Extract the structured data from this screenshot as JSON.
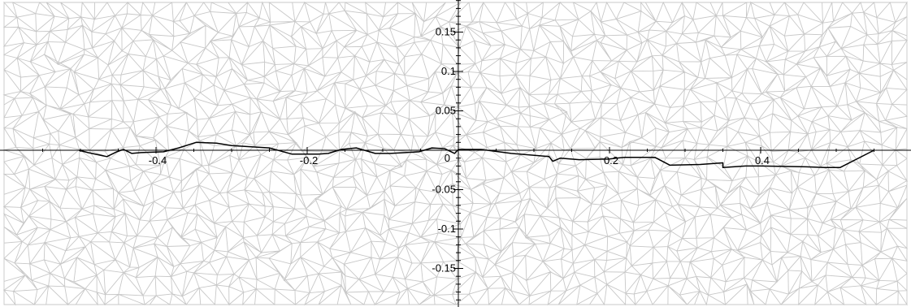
{
  "chart_data": {
    "type": "line",
    "title": "",
    "xlabel": "",
    "ylabel": "",
    "xlim": [
      -0.6,
      0.6
    ],
    "ylim": [
      -0.195,
      0.195
    ],
    "grid": false,
    "background": "triangular mesh",
    "x_ticks": [
      -0.4,
      -0.2,
      0.2,
      0.4
    ],
    "x_tick_labels": [
      "-0.4",
      "-0.2",
      "0.2",
      "0.4"
    ],
    "y_ticks": [
      0.15,
      0.1,
      0.05,
      -0.05,
      -0.1,
      -0.15
    ],
    "y_tick_labels": [
      "0.15",
      "0.1",
      "0.05",
      "-0.05",
      "-0.1",
      "-0.15"
    ],
    "origin_label": "0",
    "series": [
      {
        "color": "#000000",
        "x": [
          -0.502,
          -0.49,
          -0.465,
          -0.452,
          -0.443,
          -0.432,
          -0.42,
          -0.39,
          -0.37,
          -0.347,
          -0.32,
          -0.3,
          -0.25,
          -0.22,
          -0.2,
          -0.185,
          -0.172,
          -0.155,
          -0.135,
          -0.11,
          -0.09,
          -0.07,
          -0.052,
          -0.035,
          -0.018,
          -0.005,
          0.0,
          0.03,
          0.07,
          0.12,
          0.125,
          0.135,
          0.16,
          0.2,
          0.22,
          0.26,
          0.28,
          0.32,
          0.35,
          0.35,
          0.38,
          0.4,
          0.46,
          0.485,
          0.505,
          0.55
        ],
        "y": [
          0.0,
          -0.003,
          -0.008,
          -0.002,
          0.001,
          -0.004,
          -0.003,
          -0.002,
          0.003,
          0.01,
          0.009,
          0.006,
          0.003,
          -0.005,
          -0.005,
          -0.005,
          -0.004,
          0.001,
          0.003,
          -0.004,
          -0.004,
          -0.003,
          -0.002,
          0.003,
          0.002,
          -0.004,
          0.001,
          0.001,
          -0.004,
          -0.008,
          -0.014,
          -0.01,
          -0.012,
          -0.011,
          -0.009,
          -0.009,
          -0.019,
          -0.018,
          -0.016,
          -0.022,
          -0.02,
          -0.02,
          -0.021,
          -0.022,
          -0.022,
          0.0
        ]
      }
    ]
  },
  "colors": {
    "mesh": "#c8c8c8",
    "axes": "#000000",
    "series": "#000000"
  }
}
